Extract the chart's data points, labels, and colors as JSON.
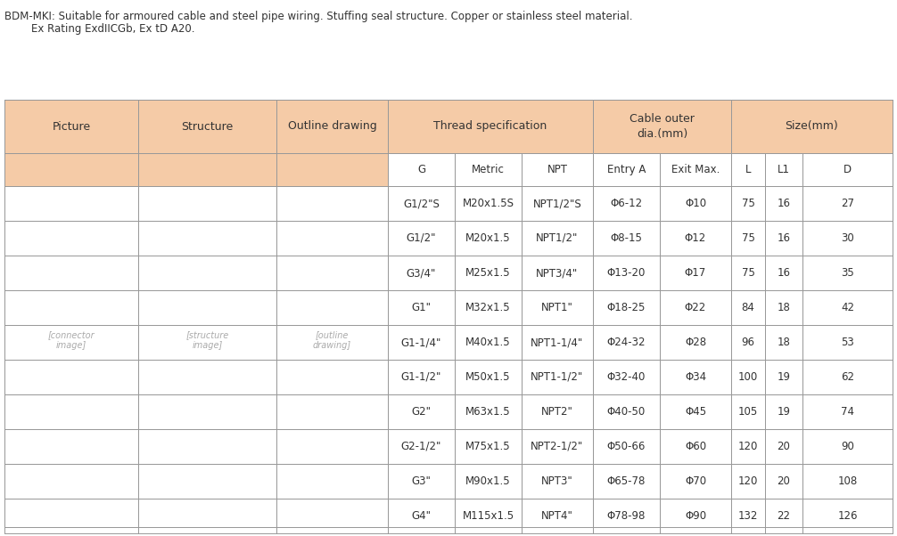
{
  "header_bg": "#f5cba7",
  "white_bg": "#ffffff",
  "border_color": "#aaaaaa",
  "text_color": "#333333",
  "header_text_color": "#333333",
  "title_line1": "BDM-MKI: Suitable for armoured cable and steel pipe wiring. Stuffing seal structure. Copper or stainless steel material.",
  "title_line2": "        Ex Rating ExdIICGb, Ex tD A20.",
  "col_headers_row1": [
    "Picture",
    "Structure",
    "Outline drawing",
    "Thread specification",
    "",
    "",
    "Cable outer\ndia.(mm)",
    "",
    "Size(mm)",
    "",
    ""
  ],
  "col_headers_row2": [
    "",
    "",
    "",
    "G",
    "Metric",
    "NPT",
    "Entry A",
    "Exit Max.",
    "L",
    "L1",
    "D"
  ],
  "table_data": [
    [
      "G1/2\"S",
      "M20x1.5S",
      "NPT1/2\"S",
      "Φ6-12",
      "Φ10",
      "75",
      "16",
      "27"
    ],
    [
      "G1/2\"",
      "M20x1.5",
      "NPT1/2\"",
      "Φ8-15",
      "Φ12",
      "75",
      "16",
      "30"
    ],
    [
      "G3/4\"",
      "M25x1.5",
      "NPT3/4\"",
      "Φ13-20",
      "Φ17",
      "75",
      "16",
      "35"
    ],
    [
      "G1\"",
      "M32x1.5",
      "NPT1\"",
      "Φ18-25",
      "Φ22",
      "84",
      "18",
      "42"
    ],
    [
      "G1-1/4\"",
      "M40x1.5",
      "NPT1-1/4\"",
      "Φ24-32",
      "Φ28",
      "96",
      "18",
      "53"
    ],
    [
      "G1-1/2\"",
      "M50x1.5",
      "NPT1-1/2\"",
      "Φ32-40",
      "Φ34",
      "100",
      "19",
      "62"
    ],
    [
      "G2\"",
      "M63x1.5",
      "NPT2\"",
      "Φ40-50",
      "Φ45",
      "105",
      "19",
      "74"
    ],
    [
      "G2-1/2\"",
      "M75x1.5",
      "NPT2-1/2\"",
      "Φ50-66",
      "Φ60",
      "120",
      "20",
      "90"
    ],
    [
      "G3\"",
      "M90x1.5",
      "NPT3\"",
      "Φ65-78",
      "Φ70",
      "120",
      "20",
      "108"
    ],
    [
      "G4\"",
      "M115x1.5",
      "NPT4\"",
      "Φ78-98",
      "Φ90",
      "132",
      "22",
      "126"
    ]
  ],
  "figsize": [
    10.06,
    6.02
  ],
  "dpi": 100
}
